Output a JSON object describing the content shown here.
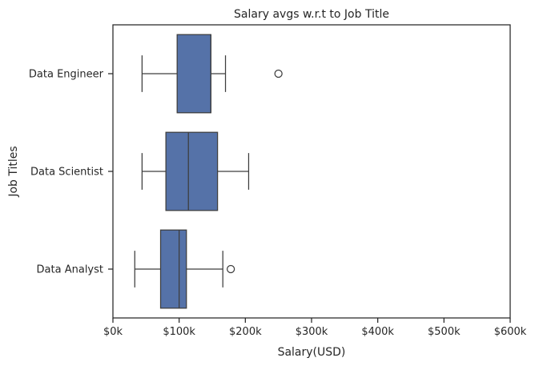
{
  "chart_data": {
    "type": "boxplot",
    "orientation": "horizontal",
    "title": "Salary avgs w.r.t to Job Title",
    "xlabel": "Salary(USD)",
    "ylabel": "Job Titles",
    "xlim": [
      0,
      600000
    ],
    "xticks": [
      0,
      100000,
      200000,
      300000,
      400000,
      500000,
      600000
    ],
    "xtick_labels": [
      "$0k",
      "$100k",
      "$200k",
      "$300k",
      "$400k",
      "$500k",
      "$600k"
    ],
    "categories": [
      "Data Engineer",
      "Data Scientist",
      "Data Analyst"
    ],
    "boxes": [
      {
        "category": "Data Engineer",
        "whisker_low": 44000,
        "q1": 97000,
        "median": 148000,
        "q3": 148000,
        "whisker_high": 170000,
        "outliers": [
          250000
        ]
      },
      {
        "category": "Data Scientist",
        "whisker_low": 44000,
        "q1": 80000,
        "median": 114000,
        "q3": 158000,
        "whisker_high": 205000,
        "outliers": []
      },
      {
        "category": "Data Analyst",
        "whisker_low": 33000,
        "q1": 72000,
        "median": 100000,
        "q3": 111000,
        "whisker_high": 166000,
        "outliers": [
          178000
        ]
      }
    ],
    "colors": {
      "box_fill": "#5572a8",
      "line": "#3d3d3d",
      "frame": "#262626"
    },
    "grid": false,
    "legend": "none"
  }
}
